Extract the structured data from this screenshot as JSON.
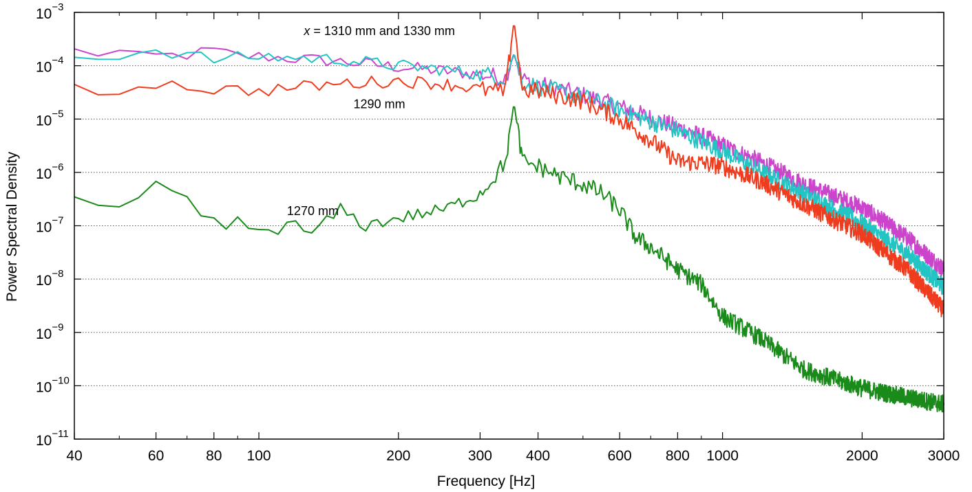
{
  "chart_data": {
    "type": "line",
    "title": "",
    "xlabel": "Frequency [Hz]",
    "ylabel": "Power Spectral Density",
    "xscale": "log",
    "yscale": "log",
    "xlim": [
      40,
      3000
    ],
    "ylim_exponent": [
      -11,
      -3
    ],
    "grid": "horizontal dotted at decades",
    "x_ticks": [
      {
        "value": 40,
        "label": "40"
      },
      {
        "value": 60,
        "label": "60"
      },
      {
        "value": 80,
        "label": "80"
      },
      {
        "value": 100,
        "label": "100"
      },
      {
        "value": 200,
        "label": "200"
      },
      {
        "value": 300,
        "label": "300"
      },
      {
        "value": 400,
        "label": "400"
      },
      {
        "value": 600,
        "label": "600"
      },
      {
        "value": 800,
        "label": "800"
      },
      {
        "value": 1000,
        "label": "1000"
      },
      {
        "value": 2000,
        "label": "2000"
      },
      {
        "value": 3000,
        "label": "3000"
      }
    ],
    "x_minor_ticks": [
      50,
      70,
      90,
      500,
      700,
      900
    ],
    "y_ticks": [
      {
        "exp": -3,
        "base": "10",
        "sup": "−3"
      },
      {
        "exp": -4,
        "base": "10",
        "sup": "−4"
      },
      {
        "exp": -5,
        "base": "10",
        "sup": "−5"
      },
      {
        "exp": -6,
        "base": "10",
        "sup": "−6"
      },
      {
        "exp": -7,
        "base": "10",
        "sup": "−7"
      },
      {
        "exp": -8,
        "base": "10",
        "sup": "−8"
      },
      {
        "exp": -9,
        "base": "10",
        "sup": "−9"
      },
      {
        "exp": -10,
        "base": "10",
        "sup": "−10"
      },
      {
        "exp": -11,
        "base": "10",
        "sup": "−11"
      }
    ],
    "peak_frequency_hz": 355,
    "series": [
      {
        "name": "1330 mm",
        "color": "#cc44cc",
        "x": [
          40,
          45,
          50,
          55,
          60,
          70,
          80,
          90,
          100,
          150,
          200,
          250,
          300,
          340,
          355,
          370,
          400,
          500,
          600,
          700,
          800,
          900,
          1000,
          1200,
          1500,
          2000,
          2500,
          3000
        ],
        "y": [
          0.00019,
          0.00017,
          0.00018,
          0.00014,
          0.00015,
          0.00016,
          0.00019,
          0.00015,
          0.00015,
          0.00012,
          9.5e-05,
          8e-05,
          6.8e-05,
          6e-05,
          0.00016,
          5.5e-05,
          4.5e-05,
          2.8e-05,
          1.7e-05,
          1.05e-05,
          7e-06,
          4.8e-06,
          3.2e-06,
          1.6e-06,
          6e-07,
          2.2e-07,
          6e-08,
          1.5e-08
        ]
      },
      {
        "name": "1310 mm",
        "color": "#22c4c4",
        "x": [
          40,
          45,
          50,
          55,
          60,
          70,
          80,
          90,
          100,
          150,
          200,
          250,
          300,
          340,
          355,
          370,
          400,
          500,
          600,
          700,
          800,
          900,
          1000,
          1200,
          1500,
          2000,
          2500,
          3000
        ],
        "y": [
          0.00014,
          0.00015,
          0.00016,
          0.00018,
          0.0002,
          0.00016,
          0.00013,
          0.00014,
          0.00015,
          0.00013,
          0.0001,
          8.5e-05,
          7e-05,
          6e-05,
          0.00017,
          5e-05,
          4e-05,
          2.6e-05,
          1.5e-05,
          9e-06,
          6e-06,
          3.8e-06,
          2.5e-06,
          1.1e-06,
          4e-07,
          1.1e-07,
          3e-08,
          7e-09
        ]
      },
      {
        "name": "1290 mm",
        "color": "#f03c1e",
        "x": [
          40,
          45,
          50,
          55,
          60,
          70,
          80,
          90,
          100,
          150,
          200,
          250,
          300,
          340,
          355,
          370,
          400,
          500,
          600,
          700,
          800,
          900,
          1000,
          1200,
          1500,
          2000,
          2500,
          3000
        ],
        "y": [
          4.5e-05,
          3.5e-05,
          3e-05,
          4.5e-05,
          4.8e-05,
          4.2e-05,
          3.6e-05,
          3.5e-05,
          3.4e-05,
          4.6e-05,
          5.2e-05,
          4.6e-05,
          3.6e-05,
          3.2e-05,
          0.00068,
          3.5e-05,
          3.3e-05,
          2.2e-05,
          1e-05,
          4e-06,
          1.6e-06,
          1.5e-06,
          1.3e-06,
          7e-07,
          2.5e-07,
          7e-08,
          1.5e-08,
          2.6e-09
        ]
      },
      {
        "name": "1270 mm",
        "color": "#1a8a1a",
        "x": [
          40,
          45,
          50,
          55,
          60,
          65,
          70,
          75,
          80,
          85,
          90,
          100,
          120,
          130,
          150,
          170,
          200,
          250,
          300,
          340,
          355,
          370,
          400,
          450,
          500,
          550,
          600,
          650,
          700,
          800,
          900,
          1000,
          1200,
          1500,
          2000,
          2500,
          3000
        ],
        "y": [
          2.7e-07,
          2e-07,
          2e-07,
          3e-07,
          5.2e-07,
          4.5e-07,
          3e-07,
          1.7e-07,
          1.4e-07,
          7e-08,
          1.2e-07,
          8e-08,
          1e-07,
          7e-08,
          2e-07,
          1e-07,
          1.4e-07,
          2e-07,
          4e-07,
          1.5e-06,
          2e-05,
          1.6e-06,
          1.3e-06,
          8e-07,
          6e-07,
          4e-07,
          2e-07,
          6e-08,
          4e-08,
          1.5e-08,
          8e-09,
          2e-09,
          8e-10,
          2e-10,
          9e-11,
          6e-11,
          4.5e-11
        ]
      }
    ],
    "annotations": [
      {
        "label_italic": "x",
        "text": " = 1310 mm and 1330 mm",
        "x": 125,
        "y_exp": -3.35
      },
      {
        "text": "1290 mm",
        "x": 160,
        "y_exp": -4.72
      },
      {
        "text": "1270 mm",
        "x": 115,
        "y_exp": -6.72
      }
    ]
  }
}
